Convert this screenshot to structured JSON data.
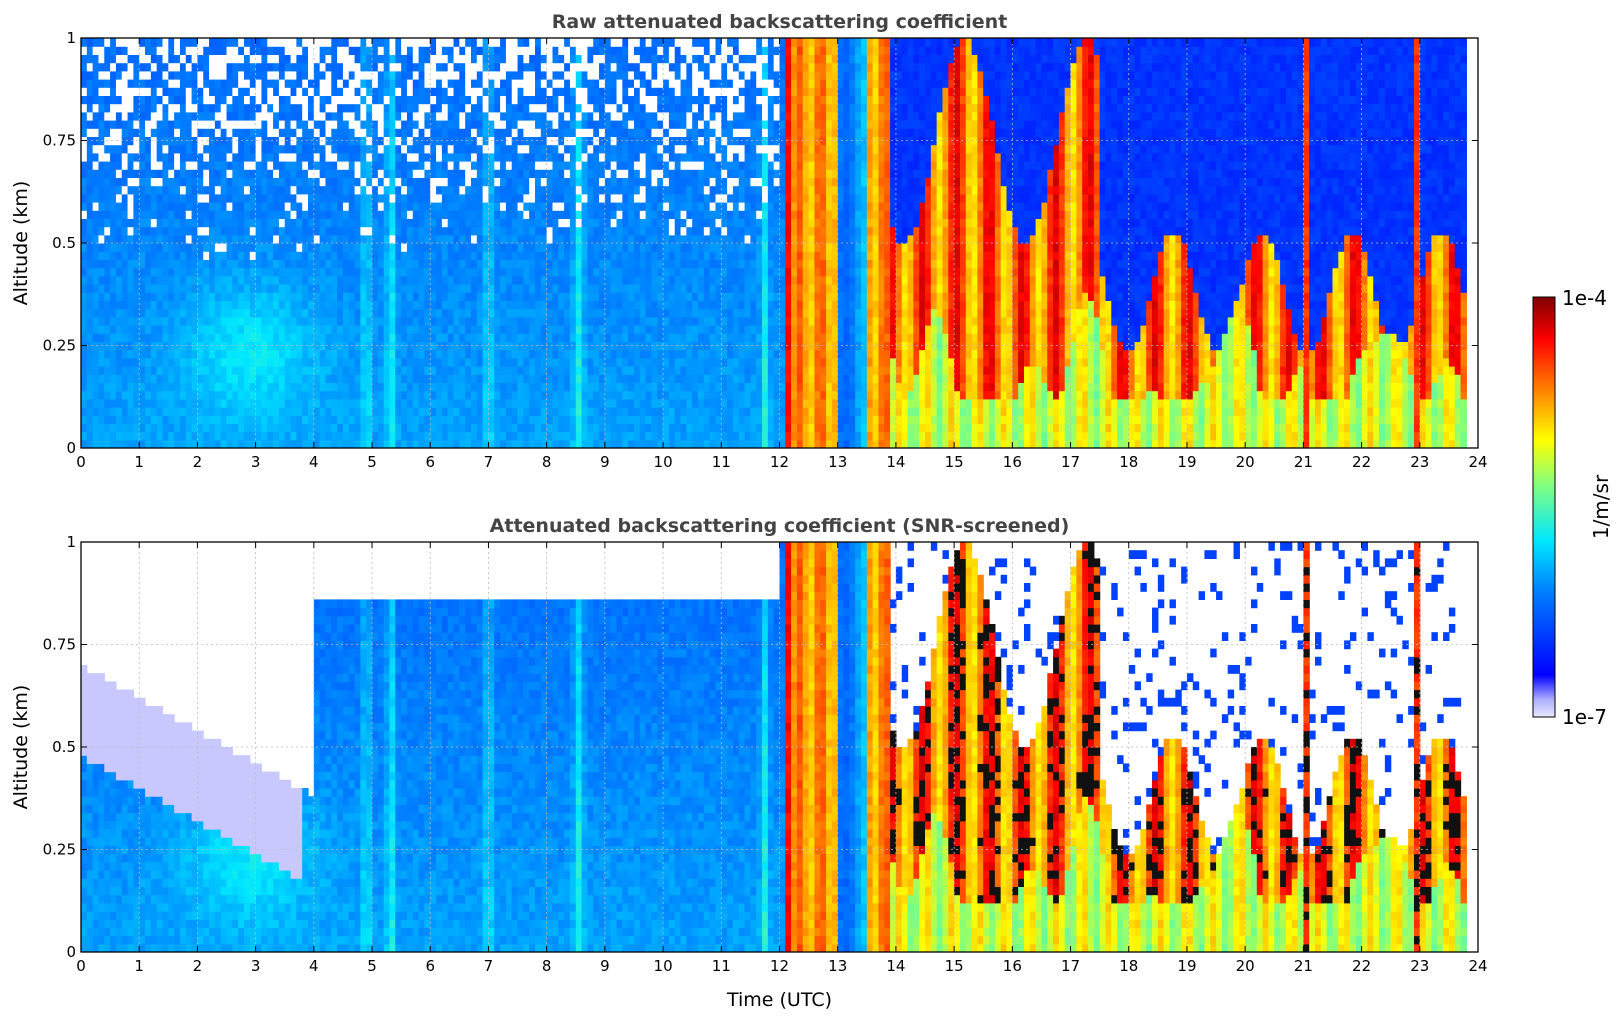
{
  "chart_data": [
    {
      "type": "heatmap",
      "title": "Raw attenuated backscattering coefficient",
      "xlabel": "",
      "ylabel": "Altitude (km)",
      "xlim": [
        0,
        24
      ],
      "ylim": [
        0,
        1
      ],
      "xticks": [
        "0",
        "1",
        "2",
        "3",
        "4",
        "5",
        "6",
        "7",
        "8",
        "9",
        "10",
        "11",
        "12",
        "13",
        "14",
        "15",
        "16",
        "17",
        "18",
        "19",
        "20",
        "21",
        "22",
        "23",
        "24"
      ],
      "yticks": [
        "0",
        "0.25",
        "0.5",
        "0.75",
        "1"
      ],
      "grid": true,
      "screened": false
    },
    {
      "type": "heatmap",
      "title": "Attenuated backscattering coefficient (SNR-screened)",
      "xlabel": "Time (UTC)",
      "ylabel": "Altitude (km)",
      "xlim": [
        0,
        24
      ],
      "ylim": [
        0,
        1
      ],
      "xticks": [
        "0",
        "1",
        "2",
        "3",
        "4",
        "5",
        "6",
        "7",
        "8",
        "9",
        "10",
        "11",
        "12",
        "13",
        "14",
        "15",
        "16",
        "17",
        "18",
        "19",
        "20",
        "21",
        "22",
        "23",
        "24"
      ],
      "yticks": [
        "0",
        "0.25",
        "0.5",
        "0.75",
        "1"
      ],
      "grid": true,
      "screened": true
    }
  ],
  "colorbar": {
    "max_label": "1e-4",
    "min_label": "1e-7",
    "unit": "1/m/sr",
    "colormap": "jet",
    "placement": "right"
  },
  "colors": {
    "title": "#444444",
    "grid": "#bbbbbb",
    "jet_low": "#00007f",
    "jet_high": "#7f0000"
  }
}
